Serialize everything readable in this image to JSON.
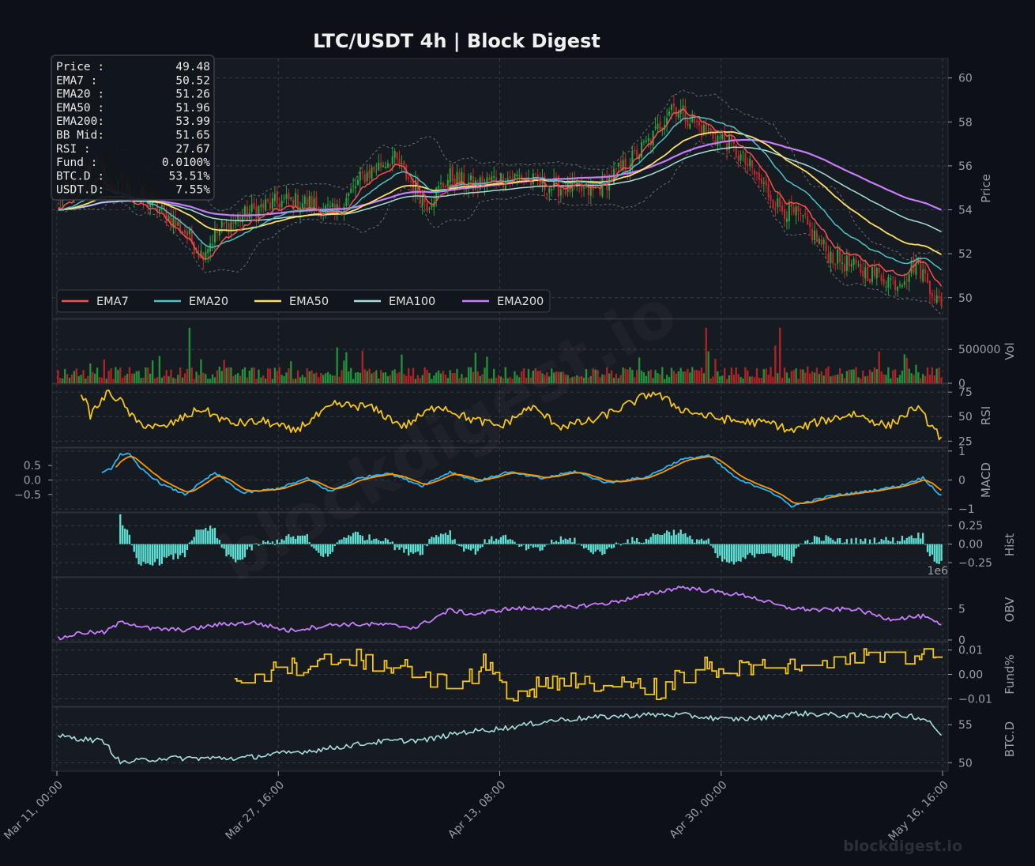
{
  "chart_data": {
    "type": "line",
    "title": "LTC/USDT  4h  |  Block Digest",
    "x_ticks": [
      "Mar 11, 00:00",
      "Mar 27, 16:00",
      "Apr 13, 08:00",
      "Apr 30, 00:00",
      "May 16, 16:00"
    ],
    "colors": {
      "background": "#0d1017",
      "panel": "#161a21",
      "grid": "#353a44",
      "bull": "#26a641",
      "bear": "#c62828",
      "ema7": "#ef5350",
      "ema20": "#4fc3c7",
      "ema50": "#ffe066",
      "ema100": "#a8dede",
      "ema200": "#c77dff",
      "rsi": "#f5c518",
      "macd": "#29b6f6",
      "signal": "#ff9800",
      "hist": "#5fe0d4",
      "obv": "#c77dff",
      "fund": "#f5c518",
      "btcd": "#a8dede"
    },
    "info_box": [
      {
        "label": "Price :",
        "value": "49.48"
      },
      {
        "label": "EMA7  :",
        "value": "50.52"
      },
      {
        "label": "EMA20 :",
        "value": "51.26"
      },
      {
        "label": "EMA50 :",
        "value": "51.96"
      },
      {
        "label": "EMA200:",
        "value": "53.99"
      },
      {
        "label": "BB Mid:",
        "value": "51.65"
      },
      {
        "label": "RSI   :",
        "value": "27.67"
      },
      {
        "label": "Fund  :",
        "value": "0.0100%"
      },
      {
        "label": "BTC.D :",
        "value": "53.51%"
      },
      {
        "label": "USDT.D:",
        "value": "7.55%"
      }
    ],
    "legend": [
      "EMA7",
      "EMA20",
      "EMA50",
      "EMA100",
      "EMA200"
    ],
    "panels": [
      {
        "key": "price",
        "ylabel": "Price",
        "ylim": [
          49.2,
          60.6
        ],
        "ticks": [
          "60",
          "58",
          "56",
          "54",
          "52",
          "50"
        ],
        "anchors": [
          [
            0,
            54.5
          ],
          [
            10,
            55.3
          ],
          [
            16,
            56.3
          ],
          [
            22,
            55.1
          ],
          [
            30,
            54.9
          ],
          [
            42,
            54.2
          ],
          [
            55,
            53.0
          ],
          [
            62,
            52.0
          ],
          [
            70,
            53.1
          ],
          [
            80,
            53.7
          ],
          [
            90,
            54.2
          ],
          [
            100,
            54.4
          ],
          [
            110,
            54.3
          ],
          [
            120,
            53.8
          ],
          [
            132,
            55.5
          ],
          [
            145,
            56.4
          ],
          [
            160,
            54.3
          ],
          [
            170,
            55.5
          ],
          [
            180,
            55.1
          ],
          [
            190,
            55.4
          ],
          [
            200,
            55.5
          ],
          [
            210,
            55.1
          ],
          [
            220,
            55.0
          ],
          [
            232,
            54.8
          ],
          [
            246,
            56.0
          ],
          [
            258,
            57.3
          ],
          [
            266,
            58.8
          ],
          [
            272,
            58.3
          ],
          [
            280,
            57.6
          ],
          [
            290,
            57.1
          ],
          [
            300,
            55.9
          ],
          [
            312,
            54.2
          ],
          [
            322,
            53.6
          ],
          [
            334,
            52.0
          ],
          [
            346,
            51.3
          ],
          [
            356,
            51.0
          ],
          [
            364,
            50.7
          ],
          [
            372,
            51.6
          ],
          [
            378,
            50.6
          ],
          [
            383,
            49.48
          ]
        ],
        "ema7": {
          "first": 54.1,
          "last": 50.52
        },
        "ema20": {
          "first": 54.0,
          "last": 51.26
        },
        "ema50": {
          "first": 54.0,
          "last": 51.96
        },
        "ema100": {
          "first": 54.0,
          "last": 53.0
        },
        "ema200": {
          "first": 54.0,
          "last": 53.99
        }
      },
      {
        "key": "vol",
        "ylabel": "Vol",
        "ylim": [
          0,
          900000
        ],
        "ticks": [
          "500000",
          "0"
        ]
      },
      {
        "key": "rsi",
        "ylabel": "RSI",
        "ylim": [
          22,
          80
        ],
        "ticks": [
          "75",
          "50",
          "25"
        ],
        "anchors": [
          [
            10,
            76
          ],
          [
            14,
            52
          ],
          [
            22,
            75
          ],
          [
            27,
            66
          ],
          [
            34,
            44
          ],
          [
            45,
            38
          ],
          [
            62,
            58
          ],
          [
            75,
            43
          ],
          [
            90,
            45
          ],
          [
            102,
            35
          ],
          [
            120,
            62
          ],
          [
            135,
            60
          ],
          [
            150,
            40
          ],
          [
            165,
            62
          ],
          [
            178,
            48
          ],
          [
            192,
            40
          ],
          [
            205,
            60
          ],
          [
            218,
            40
          ],
          [
            232,
            46
          ],
          [
            247,
            62
          ],
          [
            258,
            75
          ],
          [
            270,
            58
          ],
          [
            282,
            50
          ],
          [
            295,
            45
          ],
          [
            310,
            43
          ],
          [
            318,
            35
          ],
          [
            330,
            45
          ],
          [
            345,
            53
          ],
          [
            360,
            40
          ],
          [
            372,
            60
          ],
          [
            383,
            28
          ]
        ]
      },
      {
        "key": "macd",
        "ylabel": "MACD",
        "ylim": [
          -1.05,
          1.05
        ],
        "ticks": [
          "1",
          "0",
          "−1"
        ],
        "left_ticks": [
          "0.5",
          "0.0",
          "−0.5"
        ],
        "anchors": [
          [
            19,
            0.22
          ],
          [
            23,
            0.4
          ],
          [
            27,
            0.9
          ],
          [
            31,
            0.88
          ],
          [
            35,
            0.45
          ],
          [
            45,
            -0.15
          ],
          [
            55,
            -0.5
          ],
          [
            68,
            0.25
          ],
          [
            80,
            -0.45
          ],
          [
            95,
            -0.3
          ],
          [
            108,
            0.05
          ],
          [
            118,
            -0.4
          ],
          [
            130,
            0.05
          ],
          [
            143,
            0.25
          ],
          [
            158,
            -0.2
          ],
          [
            170,
            0.28
          ],
          [
            182,
            -0.05
          ],
          [
            195,
            0.28
          ],
          [
            210,
            0.05
          ],
          [
            224,
            0.3
          ],
          [
            238,
            -0.1
          ],
          [
            255,
            0.1
          ],
          [
            270,
            0.7
          ],
          [
            282,
            0.85
          ],
          [
            295,
            0.0
          ],
          [
            308,
            -0.35
          ],
          [
            318,
            -0.9
          ],
          [
            335,
            -0.55
          ],
          [
            350,
            -0.4
          ],
          [
            365,
            -0.2
          ],
          [
            375,
            0.08
          ],
          [
            383,
            -0.55
          ]
        ]
      },
      {
        "key": "hist",
        "ylabel": "Hist",
        "ylim": [
          -0.42,
          0.38
        ],
        "ticks": [
          "0.25",
          "0.00",
          "−0.25"
        ]
      },
      {
        "key": "obv",
        "ylabel": "OBV",
        "ylim": [
          0,
          9.5
        ],
        "ticks": [
          "5",
          "0"
        ],
        "multiplier": "1e6",
        "anchors": [
          [
            0,
            0.2
          ],
          [
            10,
            1.2
          ],
          [
            20,
            1.2
          ],
          [
            28,
            3.0
          ],
          [
            40,
            1.8
          ],
          [
            55,
            1.6
          ],
          [
            70,
            2.5
          ],
          [
            85,
            2.8
          ],
          [
            100,
            1.5
          ],
          [
            120,
            2.5
          ],
          [
            140,
            2.5
          ],
          [
            155,
            2.0
          ],
          [
            170,
            4.8
          ],
          [
            180,
            4.1
          ],
          [
            195,
            5.0
          ],
          [
            220,
            5.2
          ],
          [
            240,
            6.0
          ],
          [
            258,
            7.5
          ],
          [
            270,
            8.5
          ],
          [
            280,
            8.0
          ],
          [
            300,
            7.0
          ],
          [
            315,
            5.2
          ],
          [
            330,
            4.8
          ],
          [
            345,
            5.0
          ],
          [
            360,
            3.4
          ],
          [
            375,
            3.8
          ],
          [
            383,
            2.3
          ]
        ]
      },
      {
        "key": "fund",
        "ylabel": "Fund%",
        "ylim": [
          -0.0125,
          0.0125
        ],
        "ticks": [
          "0.01",
          "0.00",
          "−0.01"
        ],
        "start": 77,
        "anchors": [
          [
            77,
            -0.006
          ],
          [
            90,
            0.001
          ],
          [
            110,
            0.0045
          ],
          [
            128,
            0.007
          ],
          [
            145,
            0.004
          ],
          [
            160,
            -0.002
          ],
          [
            175,
            -0.004
          ],
          [
            185,
            0.005
          ],
          [
            195,
            -0.007
          ],
          [
            215,
            -0.004
          ],
          [
            232,
            -0.003
          ],
          [
            245,
            0.0
          ],
          [
            262,
            -0.007
          ],
          [
            275,
            0.003
          ],
          [
            290,
            0.0035
          ],
          [
            305,
            0.0035
          ],
          [
            325,
            0.005
          ],
          [
            345,
            0.008
          ],
          [
            365,
            0.0075
          ],
          [
            383,
            0.01
          ]
        ]
      },
      {
        "key": "btcd",
        "ylabel": "BTC.D",
        "ylim": [
          49.2,
          57.0
        ],
        "ticks": [
          "55",
          "50"
        ],
        "anchors": [
          [
            0,
            53.5
          ],
          [
            20,
            52.8
          ],
          [
            27,
            50.0
          ],
          [
            45,
            50.6
          ],
          [
            80,
            50.6
          ],
          [
            90,
            51.0
          ],
          [
            110,
            51.6
          ],
          [
            140,
            52.8
          ],
          [
            160,
            53.0
          ],
          [
            175,
            54.0
          ],
          [
            195,
            54.6
          ],
          [
            215,
            55.6
          ],
          [
            235,
            56.0
          ],
          [
            255,
            56.3
          ],
          [
            270,
            56.3
          ],
          [
            290,
            55.7
          ],
          [
            305,
            55.9
          ],
          [
            320,
            56.5
          ],
          [
            345,
            56.2
          ],
          [
            370,
            56.2
          ],
          [
            378,
            55.5
          ],
          [
            383,
            53.51
          ]
        ]
      }
    ],
    "footer": "blockdigest.io",
    "watermark": "blockdigest.io"
  }
}
